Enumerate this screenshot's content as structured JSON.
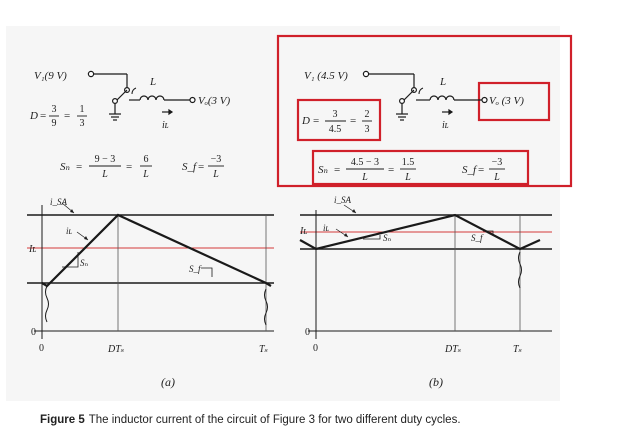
{
  "figure": {
    "caption_label": "Figure 5",
    "caption_text": "The inductor current of the circuit of Figure 3 for two different duty cycles."
  },
  "panel_a": {
    "label": "(a)",
    "vi": "V₁(9 V)",
    "inductor": "L",
    "vo": "Vₒ(3 V)",
    "il": "iʟ",
    "duty": "D = 3/9 = 1/3",
    "duty_parts": {
      "d": "D",
      "n1": "3",
      "d1": "9",
      "n2": "1",
      "d2": "3"
    },
    "sn_parts": {
      "lhs": "Sₙ",
      "n1": "9 − 3",
      "d1": "L",
      "n2": "6",
      "d2": "L"
    },
    "sf_parts": {
      "lhs": "S_f",
      "n": "−3",
      "d": "L"
    },
    "isa": "i_SA",
    "il_wave": "iʟ",
    "sn_mark": "Sₙ",
    "sf_mark": "S_f",
    "il_axis": "Iʟ",
    "zero_y": "0",
    "zero_x": "0",
    "dts": "DTₛ",
    "ts": "Tₛ",
    "duty_cycle": 0.333
  },
  "panel_b": {
    "label": "(b)",
    "vi": "V₁ (4.5 V)",
    "inductor": "L",
    "vo": "Vₒ (3 V)",
    "il": "iʟ",
    "duty_parts": {
      "d": "D",
      "n1": "3",
      "d1": "4.5",
      "n2": "2",
      "d2": "3"
    },
    "sn_parts": {
      "lhs": "Sₙ",
      "n1": "4.5 − 3",
      "d1": "L",
      "n2": "1.5",
      "d2": "L"
    },
    "sf_parts": {
      "lhs": "S_f",
      "n": "−3",
      "d": "L"
    },
    "isa": "i_SA",
    "il_wave": "iʟ",
    "sn_mark": "Sₙ",
    "sf_mark": "S_f",
    "il_axis": "Iʟ",
    "zero_y": "0",
    "zero_x": "0",
    "dts": "DTₛ",
    "ts": "Tₛ",
    "duty_cycle": 0.667
  },
  "colors": {
    "highlight": "#d0202a",
    "average_line": "#d43a3a",
    "ink": "#1a1a1a",
    "panel_bg": "#f7f7f7"
  }
}
